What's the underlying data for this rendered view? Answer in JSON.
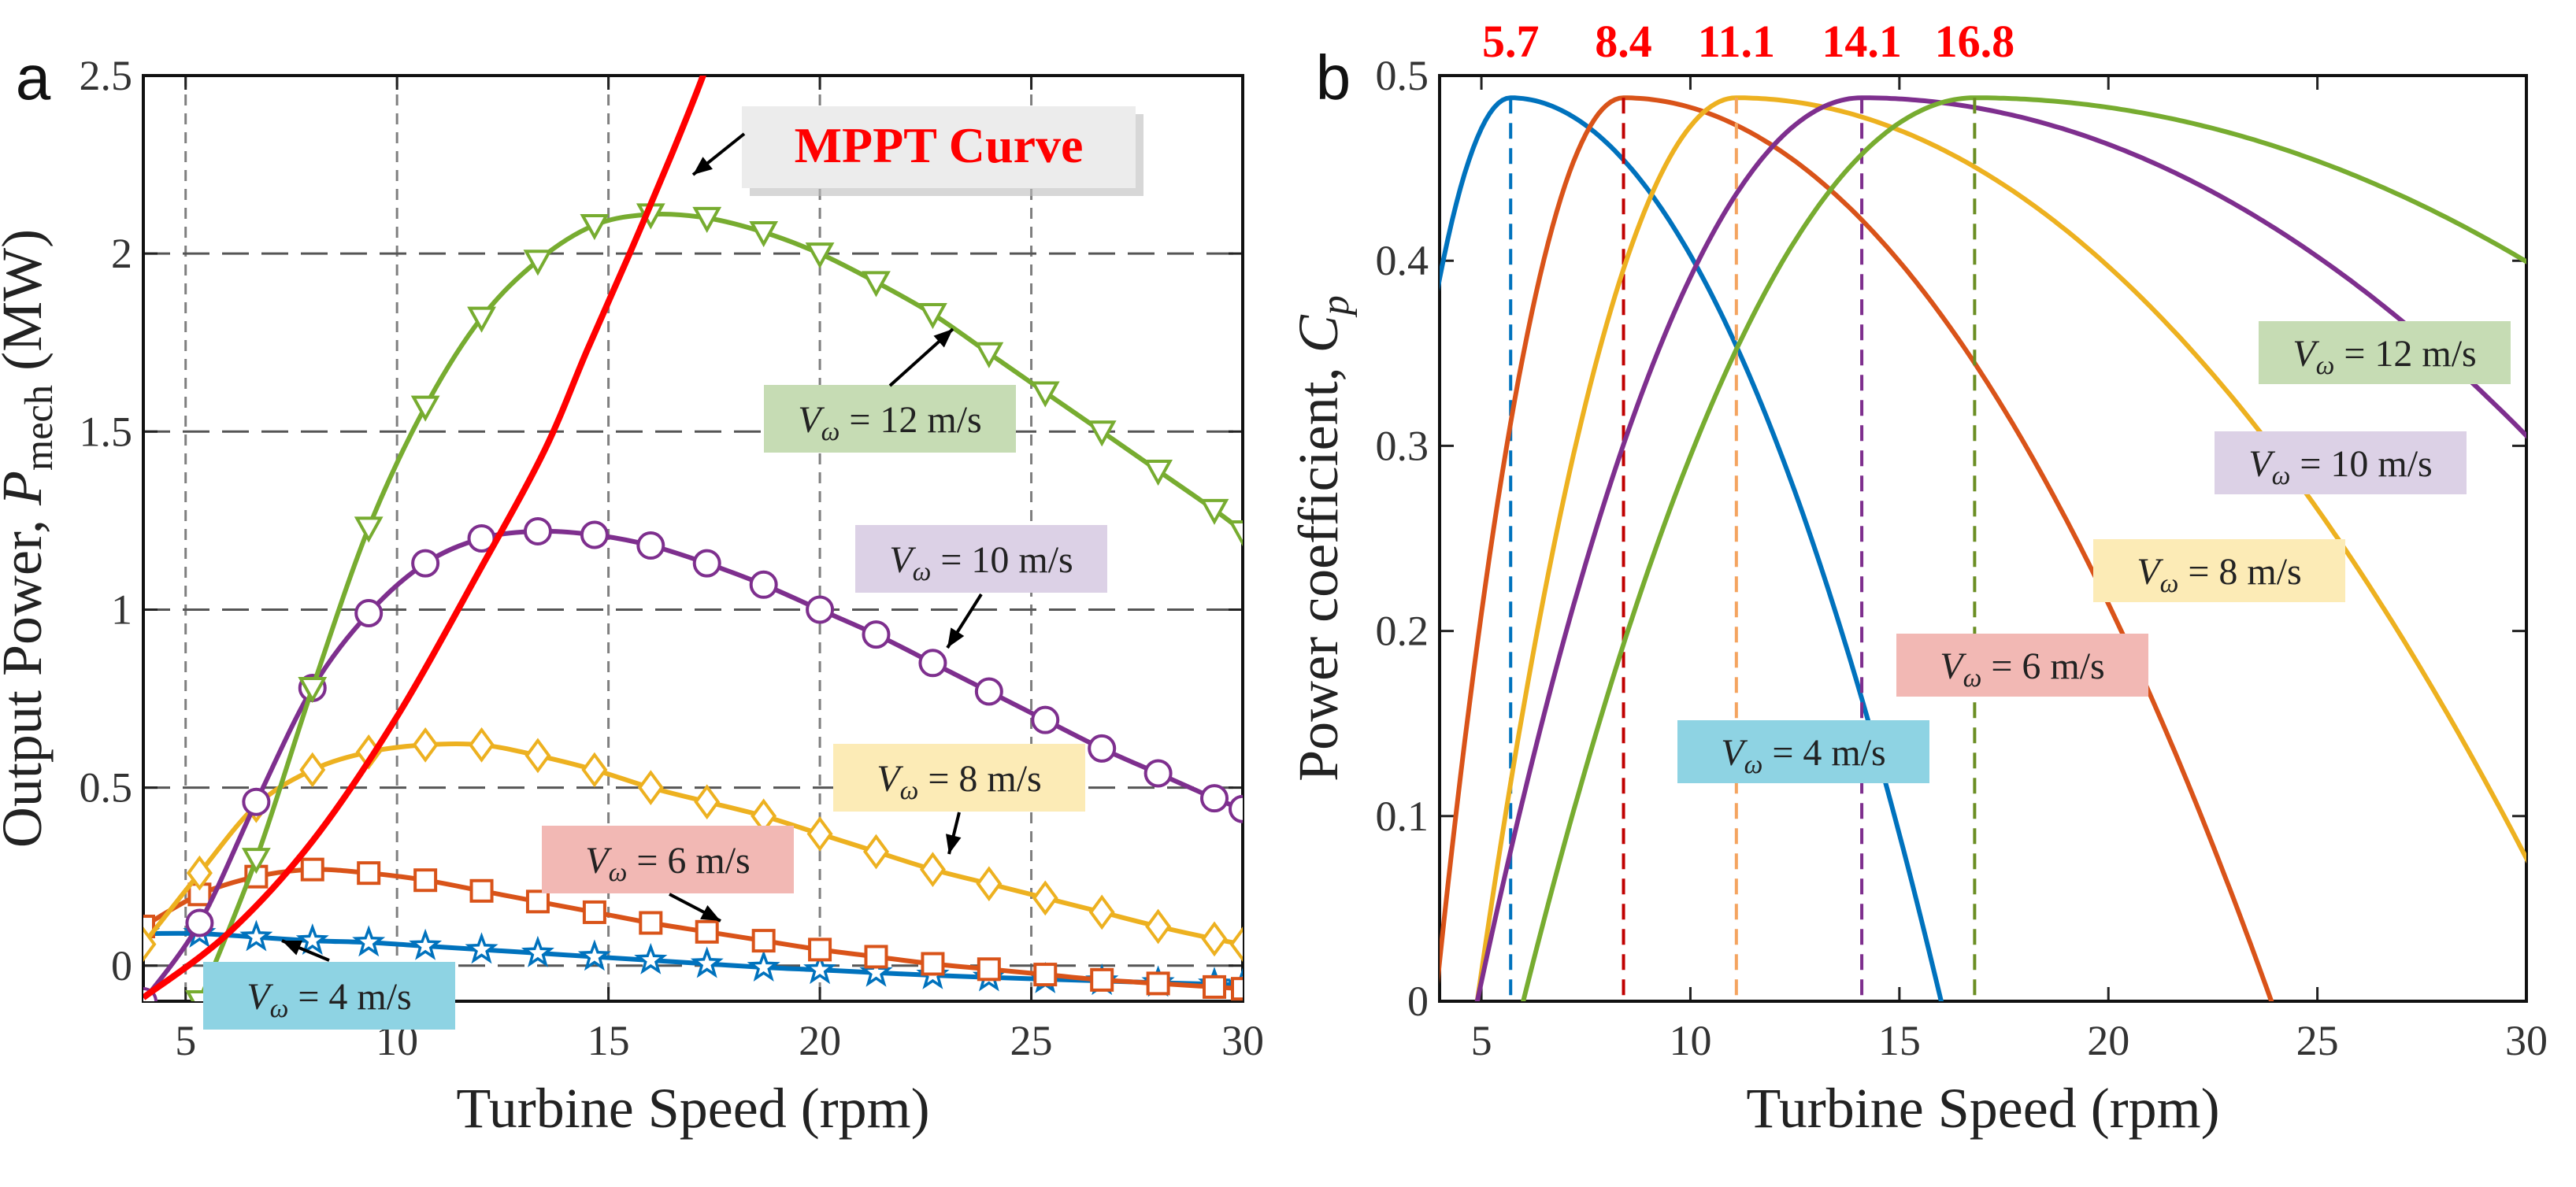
{
  "chart_data": [
    {
      "panel": "a",
      "type": "line",
      "title": "",
      "xlabel": "Turbine Speed (rpm)",
      "ylabel": "Output Power, P_mech (MW)",
      "ylabel_parts": {
        "pre": "Output Power, ",
        "sym": "P",
        "sub": "mech",
        "post": " (MW)"
      },
      "xlim": [
        4,
        30
      ],
      "ylim": [
        -0.1,
        2.5
      ],
      "xticks": [
        5,
        10,
        15,
        20,
        25,
        30
      ],
      "xtick_labels": [
        "5",
        "10",
        "15",
        "20",
        "25",
        "30"
      ],
      "yticks": [
        0,
        0.5,
        1,
        1.5,
        2,
        2.5
      ],
      "ytick_labels": [
        "0",
        "0.5",
        "1",
        "1.5",
        "2",
        "2.5"
      ],
      "grid": true,
      "x": [
        4.0,
        5.33,
        6.67,
        8.0,
        9.33,
        10.67,
        12.0,
        13.33,
        14.67,
        16.0,
        17.33,
        18.67,
        20.0,
        21.33,
        22.67,
        24.0,
        25.33,
        26.67,
        28.0,
        29.33,
        30.0
      ],
      "series": [
        {
          "name": "V_w = 4 m/s",
          "color": "#0072BD",
          "marker": "star",
          "values": [
            0.09,
            0.09,
            0.08,
            0.07,
            0.065,
            0.055,
            0.045,
            0.035,
            0.025,
            0.015,
            0.005,
            -0.005,
            -0.012,
            -0.02,
            -0.027,
            -0.033,
            -0.038,
            -0.043,
            -0.048,
            -0.052,
            -0.055
          ]
        },
        {
          "name": "V_w = 6 m/s",
          "color": "#D95319",
          "marker": "square",
          "values": [
            0.11,
            0.2,
            0.25,
            0.27,
            0.26,
            0.24,
            0.21,
            0.18,
            0.15,
            0.12,
            0.095,
            0.07,
            0.045,
            0.025,
            0.005,
            -0.01,
            -0.025,
            -0.04,
            -0.05,
            -0.06,
            -0.065
          ]
        },
        {
          "name": "V_w = 8 m/s",
          "color": "#EDB120",
          "marker": "diamond",
          "values": [
            0.06,
            0.26,
            0.45,
            0.55,
            0.6,
            0.62,
            0.62,
            0.59,
            0.55,
            0.5,
            0.46,
            0.42,
            0.37,
            0.32,
            0.27,
            0.23,
            0.19,
            0.15,
            0.11,
            0.075,
            0.06
          ]
        },
        {
          "name": "V_w = 10 m/s",
          "color": "#7E2F8E",
          "marker": "circle",
          "values": [
            -0.1,
            0.12,
            0.46,
            0.78,
            0.99,
            1.13,
            1.2,
            1.22,
            1.21,
            1.18,
            1.13,
            1.07,
            1.0,
            0.93,
            0.85,
            0.77,
            0.69,
            0.61,
            0.54,
            0.47,
            0.44
          ]
        },
        {
          "name": "V_w = 12 m/s",
          "color": "#77AC30",
          "marker": "triangle-down",
          "values": [
            null,
            -0.1,
            0.3,
            0.78,
            1.23,
            1.57,
            1.82,
            1.98,
            2.08,
            2.11,
            2.1,
            2.06,
            2.0,
            1.92,
            1.83,
            1.72,
            1.61,
            1.5,
            1.39,
            1.28,
            1.22
          ]
        }
      ],
      "mppt": {
        "name": "MPPT Curve",
        "color": "#FF0000",
        "x": [
          4,
          6,
          8,
          10,
          12,
          13.5,
          14.5,
          15.5,
          16.5,
          17.3,
          17.8
        ],
        "y": [
          -0.09,
          0.09,
          0.35,
          0.7,
          1.12,
          1.45,
          1.73,
          2.0,
          2.28,
          2.52,
          2.7
        ]
      },
      "annotations": [
        {
          "label": "MPPT Curve",
          "color": "#FF0000",
          "bg": "#ECECEC",
          "bold": true
        },
        {
          "label": "V_w = 12 m/s",
          "bg": "#C6DCB4"
        },
        {
          "label": "V_w = 10 m/s",
          "bg": "#DCD1E6"
        },
        {
          "label": "V_w = 8 m/s",
          "bg": "#FCEBB6"
        },
        {
          "label": "V_w = 6 m/s",
          "bg": "#F2B8B4"
        },
        {
          "label": "V_w = 4 m/s",
          "bg": "#8ED3E3"
        }
      ]
    },
    {
      "panel": "b",
      "type": "line",
      "title": "",
      "xlabel": "Turbine Speed (rpm)",
      "ylabel": "Power coefficient, C_p",
      "ylabel_parts": {
        "pre": "Power coefficient, ",
        "sym": "C",
        "sub": "p",
        "post": ""
      },
      "xlim": [
        4,
        30
      ],
      "ylim": [
        0,
        0.5
      ],
      "xticks": [
        5,
        10,
        15,
        20,
        25,
        30
      ],
      "xtick_labels": [
        "5",
        "10",
        "15",
        "20",
        "25",
        "30"
      ],
      "yticks": [
        0,
        0.1,
        0.2,
        0.3,
        0.4,
        0.5
      ],
      "ytick_labels": [
        "0",
        "0.1",
        "0.2",
        "0.3",
        "0.4",
        "0.5"
      ],
      "grid": false,
      "series": [
        {
          "name": "V_w = 4 m/s",
          "color": "#0072BD",
          "peak_speed": 5.7,
          "peak_cp": 0.488,
          "left_half_width": 3.8,
          "right_half_width": 10.3
        },
        {
          "name": "V_w = 6 m/s",
          "color": "#D95319",
          "peak_speed": 8.4,
          "peak_cp": 0.488,
          "left_half_width": 4.5,
          "right_half_width": 15.5
        },
        {
          "name": "V_w = 8 m/s",
          "color": "#EDB120",
          "peak_speed": 11.1,
          "peak_cp": 0.488,
          "left_half_width": 6.2,
          "right_half_width": 20.6
        },
        {
          "name": "V_w = 10 m/s",
          "color": "#7E2F8E",
          "peak_speed": 14.1,
          "peak_cp": 0.488,
          "left_half_width": 9.2,
          "right_half_width": 26.0
        },
        {
          "name": "V_w = 12 m/s",
          "color": "#77AC30",
          "peak_speed": 16.8,
          "peak_cp": 0.488,
          "left_half_width": 10.8,
          "right_half_width": 31.0
        }
      ],
      "peak_labels": [
        "5.7",
        "8.4",
        "11.1",
        "14.1",
        "16.8"
      ],
      "peak_label_color": "#FF0000",
      "peak_line_colors": [
        "#0072BD",
        "#C00000",
        "#F4A460",
        "#7E2F8E",
        "#6B8E23"
      ],
      "annotations": [
        {
          "label": "V_w = 12 m/s",
          "bg": "#C6DCB4"
        },
        {
          "label": "V_w = 10 m/s",
          "bg": "#DCD1E6"
        },
        {
          "label": "V_w = 8 m/s",
          "bg": "#FCEBB6"
        },
        {
          "label": "V_w = 6 m/s",
          "bg": "#F2B8B4"
        },
        {
          "label": "V_w = 4 m/s",
          "bg": "#8ED3E3"
        }
      ]
    }
  ]
}
